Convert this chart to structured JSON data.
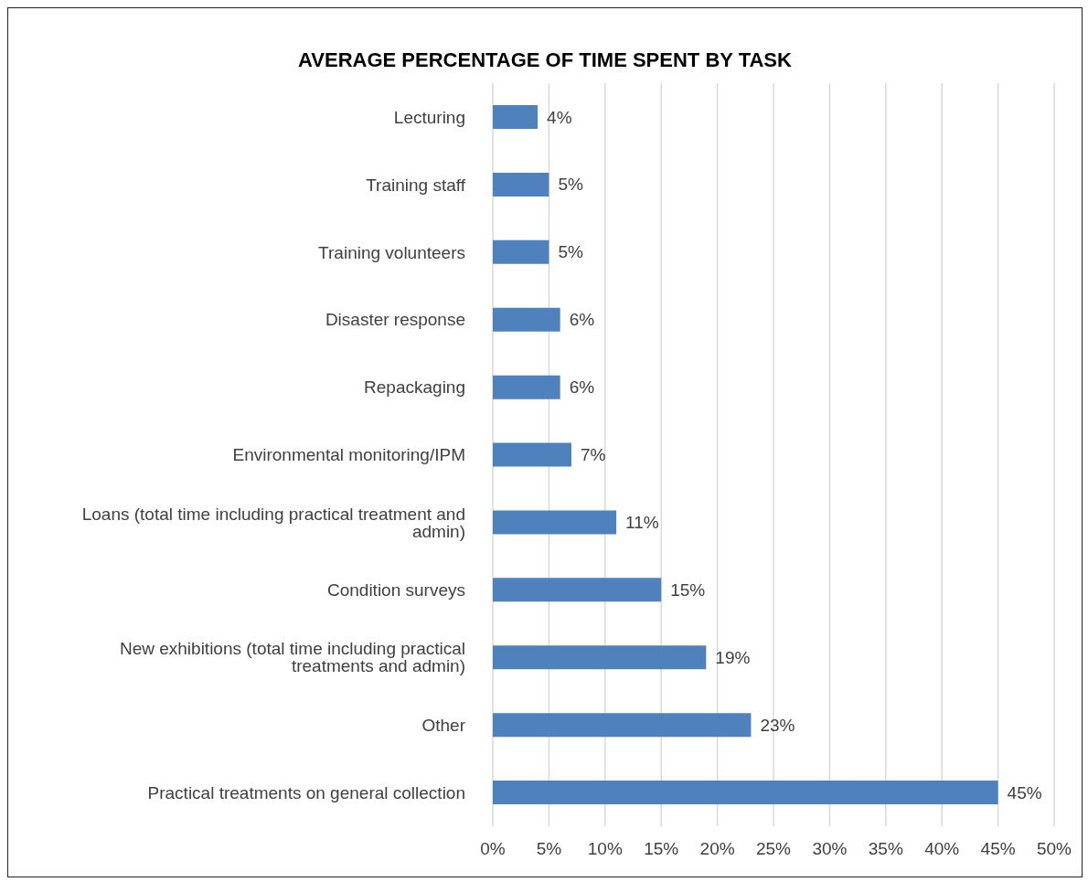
{
  "chart_data": {
    "type": "bar",
    "orientation": "horizontal",
    "title": "AVERAGE PERCENTAGE OF TIME SPENT BY TASK",
    "categories": [
      "Lecturing",
      "Training staff",
      "Training volunteers",
      "Disaster response",
      "Repackaging",
      "Environmental monitoring/IPM",
      "Loans (total time including practical treatment and admin)",
      "Condition surveys",
      "New exhibitions (total time including practical treatments and admin)",
      "Other",
      "Practical treatments on general collection"
    ],
    "values": [
      4,
      5,
      5,
      6,
      6,
      7,
      11,
      15,
      19,
      23,
      45
    ],
    "color": "#4f81bd",
    "value_labels": [
      "4%",
      "5%",
      "5%",
      "6%",
      "6%",
      "7%",
      "11%",
      "15%",
      "19%",
      "23%",
      "45%"
    ],
    "xlim": [
      0,
      50
    ],
    "xticks": [
      {
        "value": 0,
        "label": "0%"
      },
      {
        "value": 5,
        "label": "5%"
      },
      {
        "value": 10,
        "label": "10%"
      },
      {
        "value": 15,
        "label": "15%"
      },
      {
        "value": 20,
        "label": "20%"
      },
      {
        "value": 25,
        "label": "25%"
      },
      {
        "value": 30,
        "label": "30%"
      },
      {
        "value": 35,
        "label": "35%"
      },
      {
        "value": 40,
        "label": "40%"
      },
      {
        "value": 45,
        "label": "45%"
      },
      {
        "value": 50,
        "label": "50%"
      }
    ],
    "grid": "x",
    "legend": false
  }
}
